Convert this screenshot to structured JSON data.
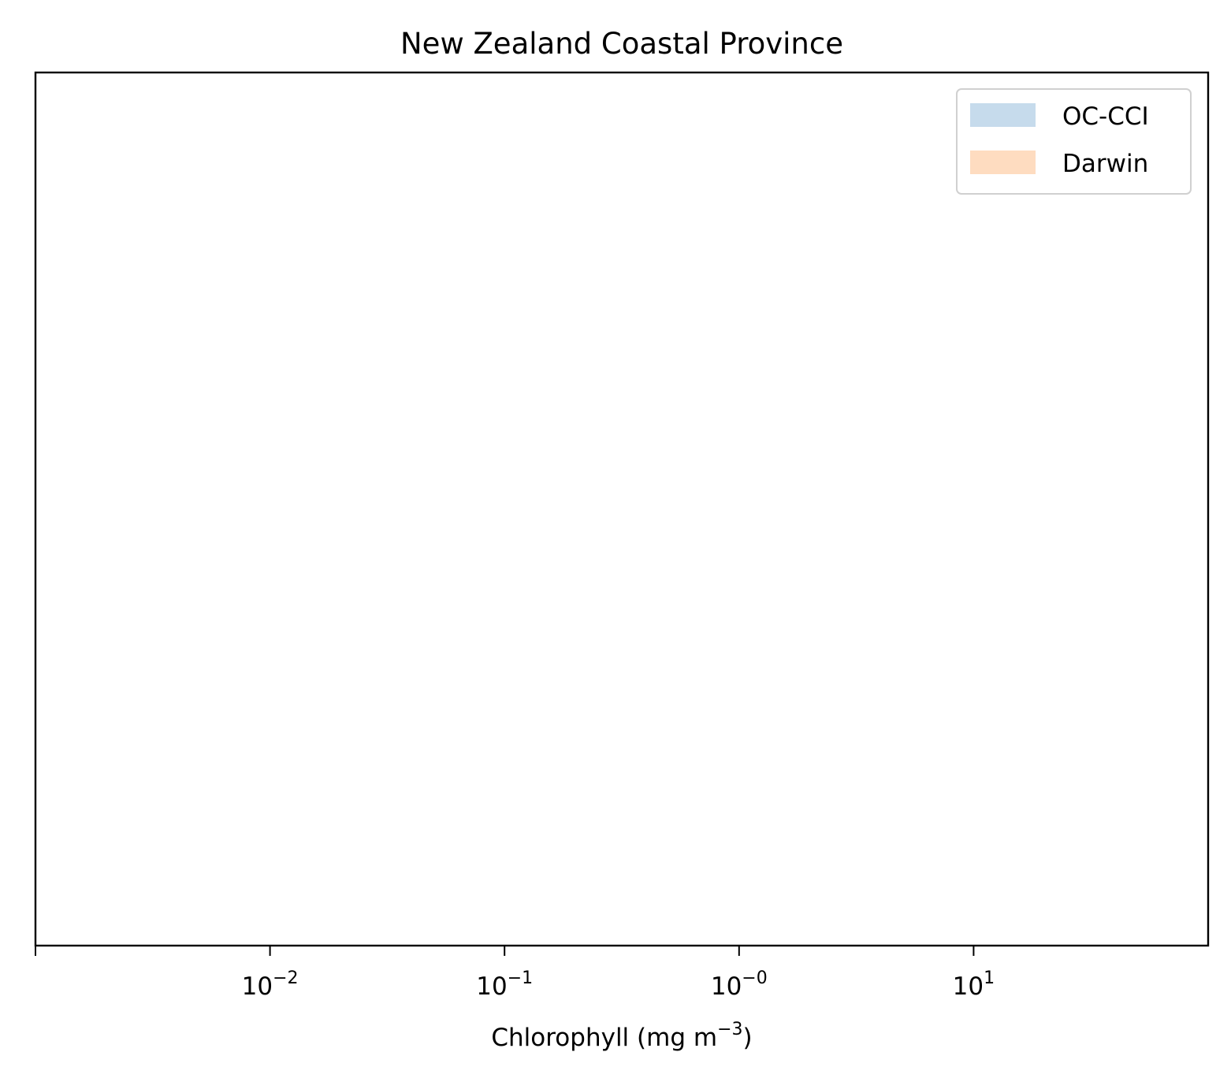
{
  "chart_data": {
    "type": "area",
    "title": "New Zealand Coastal Province",
    "xlabel": "Chlorophyll  (mg m",
    "xlabel_sup": "−3",
    "xlabel_suffix": ")",
    "ylabel": "",
    "x_scale": "log",
    "xlim": [
      0.001,
      100
    ],
    "x_ticks": [
      {
        "value": 0.01,
        "base": "10",
        "exp": "−2"
      },
      {
        "value": 0.1,
        "base": "10",
        "exp": "−1"
      },
      {
        "value": 1,
        "base": "10",
        "exp": "−0"
      },
      {
        "value": 10,
        "base": "10",
        "exp": "1"
      }
    ],
    "y_ticks_shown": false,
    "grid": false,
    "legend_position": "top-right",
    "series": [
      {
        "name": "OC-CCI",
        "color": "#c6dbec",
        "values": []
      },
      {
        "name": "Darwin",
        "color": "#fedcc0",
        "values": []
      }
    ]
  }
}
